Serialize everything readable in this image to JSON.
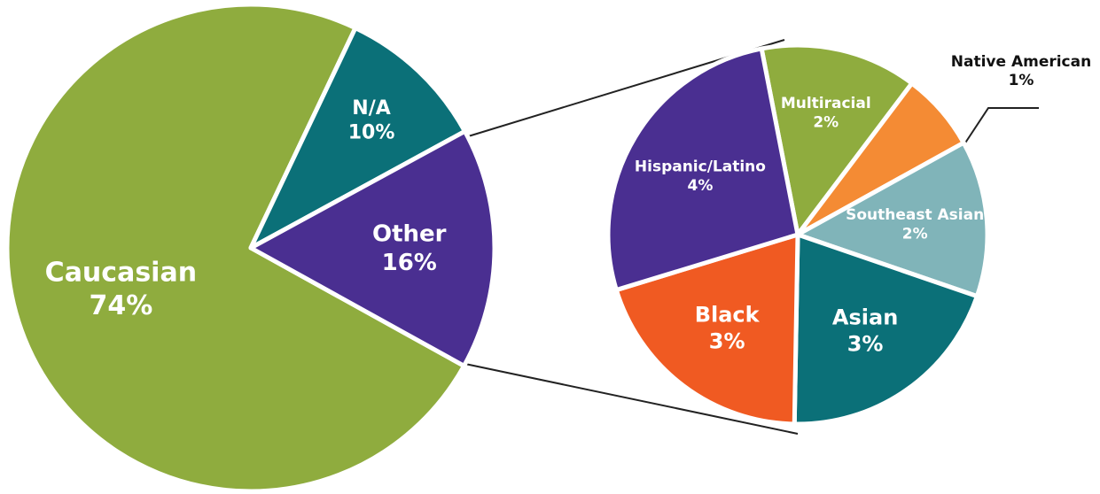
{
  "chart_data": [
    {
      "type": "pie",
      "categories": [
        "Caucasian",
        "N/A",
        "Other"
      ],
      "values": [
        74,
        10,
        16
      ],
      "value_labels": [
        "74%",
        "10%",
        "16%"
      ],
      "colors": [
        "#8fac3e",
        "#0b7078",
        "#4a2f91"
      ]
    },
    {
      "type": "pie",
      "categories": [
        "Multiracial",
        "Native American",
        "Southeast Asian",
        "Asian",
        "Black",
        "Hispanic/Latino"
      ],
      "values": [
        2,
        1,
        2,
        3,
        3,
        4
      ],
      "value_labels": [
        "2%",
        "1%",
        "2%",
        "3%",
        "3%",
        "4%"
      ],
      "colors": [
        "#8fac3e",
        "#f48b34",
        "#80b4b9",
        "#0b7078",
        "#f05a22",
        "#4a2f91"
      ]
    }
  ]
}
